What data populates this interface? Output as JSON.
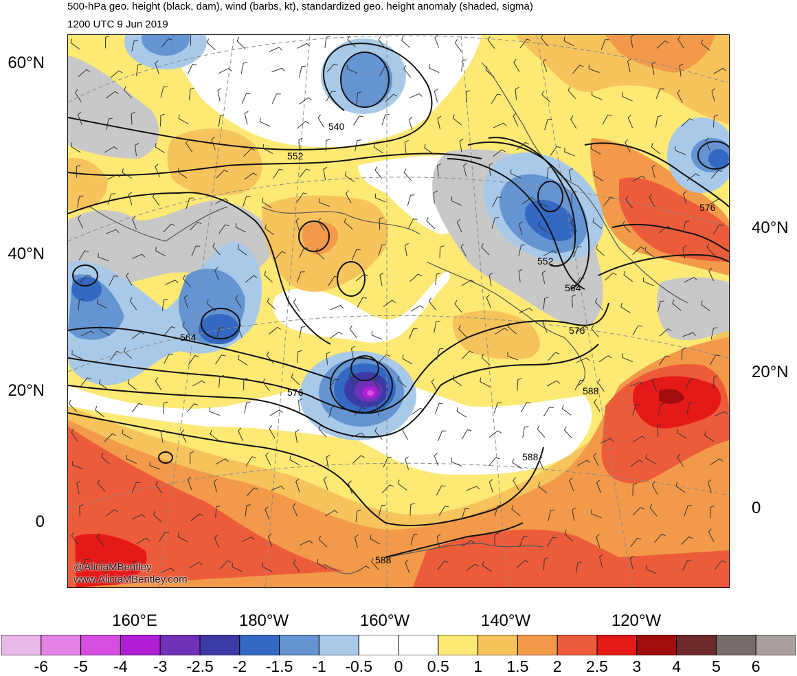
{
  "header": {
    "title_line1": "500-hPa geo. height (black, dam), wind (barbs, kt), standardized geo. height anomaly (shaded, sigma)",
    "title_line2": "1200 UTC 9 Jun 2019"
  },
  "axes": {
    "lat_left": [
      "60°N",
      "40°N",
      "20°N",
      "0"
    ],
    "lat_right": [
      "40°N",
      "20°N",
      "0"
    ],
    "lon_bottom": [
      "160°E",
      "180°W",
      "160°W",
      "140°W",
      "120°W"
    ]
  },
  "contour_labels": [
    "540",
    "552",
    "552",
    "564",
    "564",
    "576",
    "576",
    "576",
    "588",
    "588",
    "588"
  ],
  "credit": {
    "line1": "@AliciaMBentley",
    "line2": "www.AliciaMBentley.com"
  },
  "colorbar": {
    "labels": [
      "-6",
      "-5",
      "-4",
      "-3",
      "-2.5",
      "-2",
      "-1.5",
      "-1",
      "-0.5",
      "0",
      "0.5",
      "1",
      "1.5",
      "2",
      "2.5",
      "3",
      "4",
      "5",
      "6"
    ],
    "colors": [
      "#eab8e8",
      "#e482e6",
      "#d74fe0",
      "#b01ed6",
      "#7130b8",
      "#3c3ba6",
      "#3468c2",
      "#6494d2",
      "#a9c9e8",
      "#ffffff",
      "#ffffff",
      "#fde974",
      "#f7c35c",
      "#f29a4a",
      "#ed5c3a",
      "#e61919",
      "#a10c0c",
      "#6e2a2a",
      "#766d6b",
      "#a8a09f"
    ]
  },
  "colors": {
    "neg05": "#a9c9e8",
    "neg1": "#6494d2",
    "neg15": "#3468c2",
    "neg2": "#3c3ba6",
    "neg25": "#7130b8",
    "neg3": "#b01ed6",
    "neg4": "#d74fe0",
    "pos05": "#fde974",
    "pos1": "#f7c35c",
    "pos15": "#f29a4a",
    "pos2": "#ed5c3a",
    "pos25": "#e61919",
    "pos3": "#a10c0c",
    "gray": "#c8c8c8"
  }
}
